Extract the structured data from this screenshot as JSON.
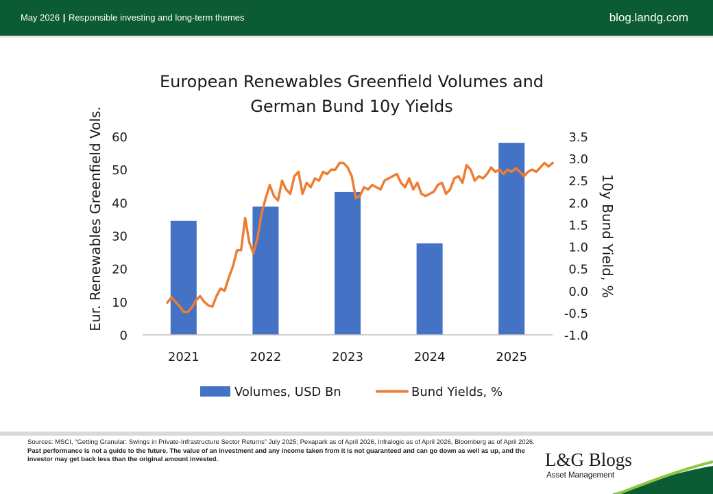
{
  "header": {
    "date": "May 2026",
    "separator": "|",
    "section": "Responsible investing and long-term themes",
    "site": "blog.landg.com"
  },
  "colors": {
    "brand_green": "#0b5b35",
    "bar_blue": "#4472c4",
    "line_orange": "#ed7d31"
  },
  "chart_data": {
    "type": "bar",
    "title_line1": "European Renewables Greenfield Volumes and",
    "title_line2": "German Bund 10y Yields",
    "ylabel": "Eur. Renewables Greenfield Vols.",
    "y2label": "10y Bund Yield, %",
    "categories": [
      "2021",
      "2022",
      "2023",
      "2024",
      "2025"
    ],
    "ylim": [
      0,
      60
    ],
    "yticks": [
      "0",
      "10",
      "20",
      "30",
      "40",
      "50",
      "60"
    ],
    "y2lim": [
      -1.0,
      3.5
    ],
    "y2ticks": [
      "-1.0",
      "-0.5",
      "0.0",
      "0.5",
      "1.0",
      "1.5",
      "2.0",
      "2.5",
      "3.0",
      "3.5"
    ],
    "grid": false,
    "legend_position": "bottom",
    "series": [
      {
        "name": "Volumes, USD Bn",
        "kind": "bar",
        "values": [
          34.5,
          38.8,
          43.2,
          27.7,
          58.1
        ]
      },
      {
        "name": "Bund Yields, %",
        "kind": "line",
        "x": [
          0.0,
          0.05,
          0.1,
          0.15,
          0.2,
          0.25,
          0.3,
          0.35,
          0.4,
          0.45,
          0.5,
          0.55,
          0.6,
          0.65,
          0.7,
          0.75,
          0.8,
          0.85,
          0.9,
          0.95,
          1.0,
          1.05,
          1.1,
          1.15,
          1.2,
          1.25,
          1.3,
          1.35,
          1.4,
          1.45,
          1.5,
          1.55,
          1.6,
          1.65,
          1.7,
          1.75,
          1.8,
          1.85,
          1.9,
          1.95,
          2.0,
          2.05,
          2.1,
          2.15,
          2.2,
          2.25,
          2.3,
          2.35,
          2.4,
          2.45,
          2.5,
          2.55,
          2.6,
          2.65,
          2.7,
          2.75,
          2.8,
          2.85,
          2.9,
          2.95,
          3.0,
          3.05,
          3.1,
          3.15,
          3.2,
          3.25,
          3.3,
          3.35,
          3.4,
          3.45,
          3.5,
          3.55,
          3.6,
          3.65,
          3.7,
          3.75,
          3.8,
          3.85,
          3.9,
          3.95,
          4.0,
          4.05,
          4.1,
          4.15,
          4.2,
          4.25,
          4.3,
          4.35,
          4.4,
          4.45,
          4.5,
          4.55,
          4.6,
          4.65,
          4.7
        ],
        "values": [
          -0.27,
          -0.15,
          -0.25,
          -0.35,
          -0.48,
          -0.48,
          -0.38,
          -0.22,
          -0.12,
          -0.25,
          -0.33,
          -0.36,
          -0.12,
          0.05,
          0.0,
          0.3,
          0.55,
          0.92,
          0.92,
          1.65,
          1.1,
          0.85,
          1.2,
          1.75,
          2.1,
          2.4,
          2.15,
          2.05,
          2.5,
          2.3,
          2.2,
          2.6,
          2.7,
          2.2,
          2.45,
          2.35,
          2.55,
          2.5,
          2.7,
          2.65,
          2.75,
          2.75,
          2.9,
          2.9,
          2.8,
          2.6,
          2.1,
          2.15,
          2.35,
          2.3,
          2.4,
          2.35,
          2.3,
          2.5,
          2.55,
          2.6,
          2.65,
          2.45,
          2.35,
          2.55,
          2.3,
          2.45,
          2.2,
          2.15,
          2.2,
          2.25,
          2.4,
          2.45,
          2.2,
          2.3,
          2.55,
          2.6,
          2.45,
          2.85,
          2.75,
          2.5,
          2.6,
          2.55,
          2.65,
          2.8,
          2.7,
          2.75,
          2.65,
          2.75,
          2.7,
          2.78,
          2.7,
          2.6,
          2.7,
          2.75,
          2.7,
          2.8,
          2.9,
          2.82,
          2.9
        ]
      }
    ]
  },
  "footer": {
    "sources": "Sources: MSCI, “Getting Granular: Swings in Private-Infrastructure Sector Returns” July 2025; Pexapark as of April 2026, Infralogic as of April 2026, Bloomberg as of April 2026.",
    "disclaimer": "Past performance is not a guide to the future. The value of an investment and any income taken from it is not guaranteed and can go down as well as up, and the investor may get back less than the original amount invested.",
    "brand": "L&G Blogs",
    "brand_sub": "Asset Management"
  }
}
